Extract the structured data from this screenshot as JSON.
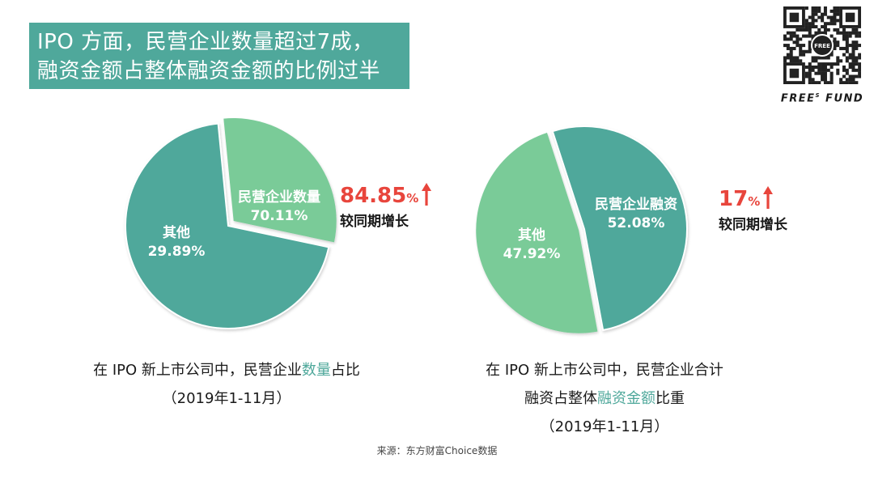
{
  "header": {
    "title_line1": "IPO 方面，民营企业数量超过7成，",
    "title_line2": "融资金额占整体融资金额的比例过半"
  },
  "brand": {
    "logo_text": "FREE",
    "logo_sup": "S",
    "logo_text2": " FUND",
    "qr_center": "FREE",
    "qr_color": "#222222"
  },
  "colors": {
    "dark_teal": "#4fa89b",
    "light_green": "#7acb98",
    "accent_red": "#e8453c"
  },
  "chart_data": [
    {
      "type": "pie",
      "slices": [
        {
          "label": "民营企业数量",
          "value": 70.11,
          "value_label": "70.11%",
          "color": "#4fa89b"
        },
        {
          "label": "其他",
          "value": 29.89,
          "value_label": "29.89%",
          "color": "#7acb98"
        }
      ],
      "growth": {
        "value": "84.85",
        "unit": "%",
        "label": "较同期增长"
      },
      "caption": {
        "line1_pre": "在 IPO 新上市公司中，民营企业",
        "line1_hl": "数量",
        "line1_post": "占比",
        "line2": "（2019年1-11月）"
      }
    },
    {
      "type": "pie",
      "slices": [
        {
          "label": "民营企业融资",
          "value": 52.08,
          "value_label": "52.08%",
          "color": "#4fa89b"
        },
        {
          "label": "其他",
          "value": 47.92,
          "value_label": "47.92%",
          "color": "#7acb98"
        }
      ],
      "growth": {
        "value": "17",
        "unit": "%",
        "label": "较同期增长"
      },
      "caption": {
        "line1": "在 IPO 新上市公司中，民营企业合计",
        "line2_pre": "融资占整体",
        "line2_hl": "融资金额",
        "line2_post": "比重",
        "line3": "（2019年1-11月）"
      }
    }
  ],
  "footer": {
    "source": "来源：东方财富Choice数据"
  }
}
